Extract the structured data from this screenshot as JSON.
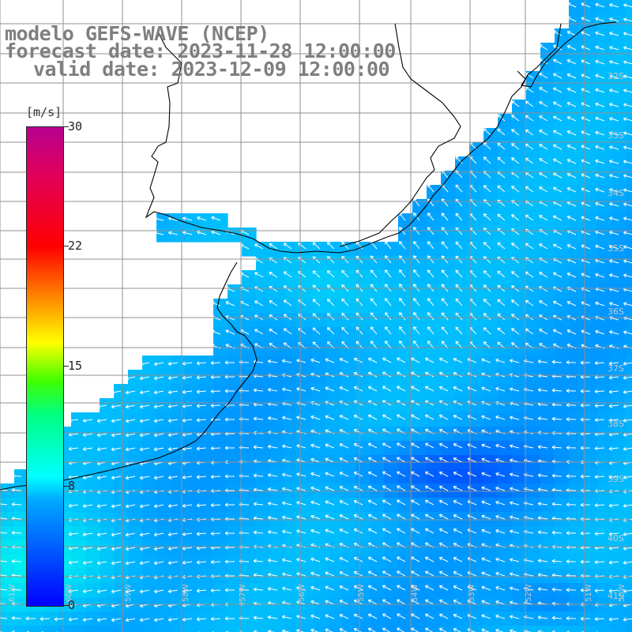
{
  "title": {
    "model": "modelo GEFS-WAVE (NCEP)",
    "forecast": "forecast date: 2023-11-28 12:00:00",
    "valid": "valid date: 2023-12-09 12:00:00"
  },
  "colorbar": {
    "unit": "[m/s]",
    "ticks": [
      "30",
      "22",
      "15",
      "8",
      "0"
    ],
    "tick_values": [
      30,
      22,
      15,
      8,
      0
    ],
    "range": [
      0,
      30
    ],
    "colors": [
      "#0000ff",
      "#00a8ff",
      "#00ffff",
      "#00ff80",
      "#40ff00",
      "#ffff00",
      "#ff8000",
      "#ff0000",
      "#e0005a",
      "#b80090"
    ]
  },
  "map": {
    "lat_labels": [
      "32S",
      "33S",
      "34S",
      "35S",
      "36S",
      "37S",
      "38S",
      "39S",
      "40S",
      "41S"
    ],
    "lon_labels": [
      "61W",
      "60W",
      "59W",
      "58W",
      "57W",
      "56W",
      "55W",
      "54W",
      "53W",
      "52W",
      "51W",
      "50W"
    ],
    "field": "wind speed and direction",
    "land_color": "#ffffff",
    "coast_color": "#000000",
    "grid_color": "#909090",
    "arrow_color": "#ffffff"
  }
}
